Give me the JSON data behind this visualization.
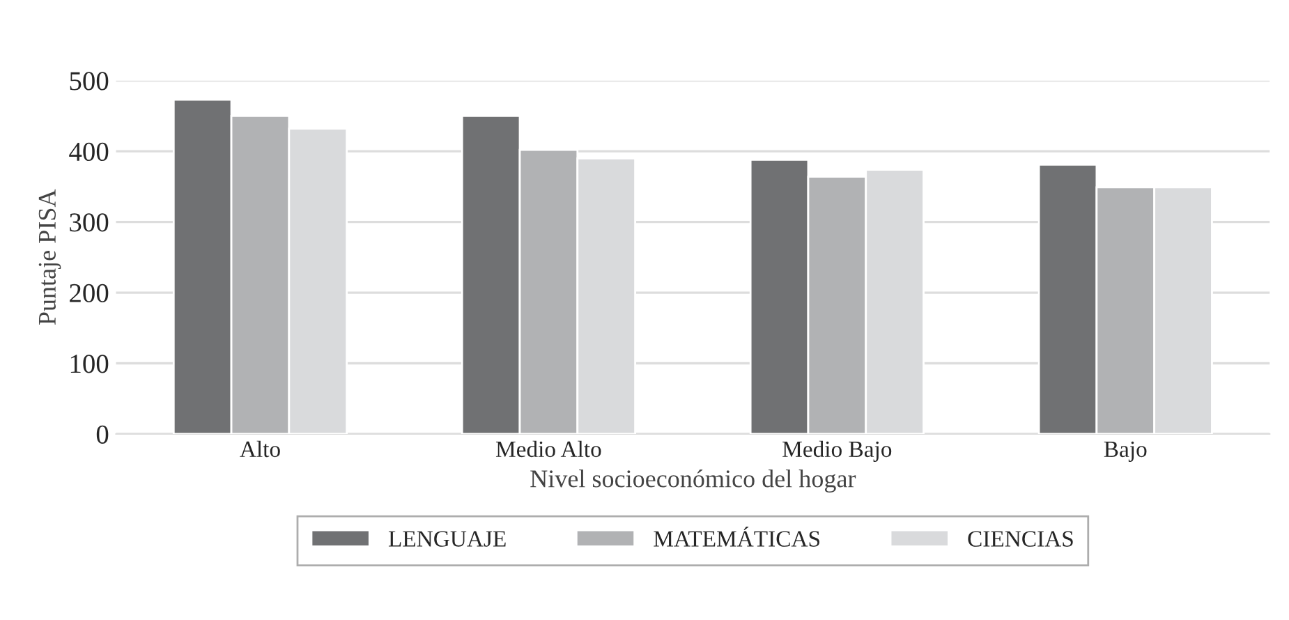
{
  "chart_data": {
    "type": "bar",
    "xlabel": "Nivel socioeconómico del hogar",
    "ylabel": "Puntaje PISA",
    "categories": [
      "Alto",
      "Medio Alto",
      "Medio Bajo",
      "Bajo"
    ],
    "series": [
      {
        "name": "LENGUAJE",
        "color": "#707173",
        "values": [
          473,
          450,
          388,
          381
        ]
      },
      {
        "name": "MATEMÁTICAS",
        "color": "#b1b2b4",
        "values": [
          450,
          402,
          364,
          349
        ]
      },
      {
        "name": "CIENCIAS",
        "color": "#d9dadc",
        "values": [
          432,
          390,
          374,
          349
        ]
      }
    ],
    "ylim": [
      0,
      500
    ],
    "yticks": [
      0,
      100,
      200,
      300,
      400,
      500
    ],
    "grid": "y",
    "legend": "bottom"
  }
}
